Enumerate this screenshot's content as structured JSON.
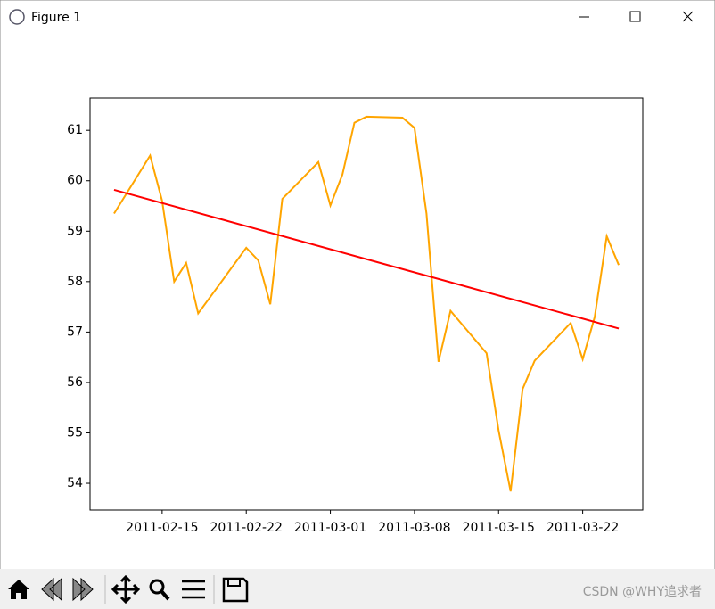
{
  "window": {
    "title": "Figure 1"
  },
  "watermark": "CSDN @WHY追求者",
  "chart_data": {
    "type": "line",
    "xlim": [
      "2011-02-09",
      "2011-03-27"
    ],
    "xticks": [
      "2011-02-15",
      "2011-02-22",
      "2011-03-01",
      "2011-03-08",
      "2011-03-15",
      "2011-03-22"
    ],
    "ylim": [
      53.47,
      61.64
    ],
    "yticks": [
      54,
      55,
      56,
      57,
      58,
      59,
      60,
      61
    ],
    "series": [
      {
        "color": "#ffa500",
        "x": [
          "2011-02-11",
          "2011-02-14",
          "2011-02-15",
          "2011-02-16",
          "2011-02-17",
          "2011-02-18",
          "2011-02-22",
          "2011-02-23",
          "2011-02-24",
          "2011-02-25",
          "2011-02-28",
          "2011-03-01",
          "2011-03-02",
          "2011-03-03",
          "2011-03-04",
          "2011-03-07",
          "2011-03-08",
          "2011-03-09",
          "2011-03-10",
          "2011-03-11",
          "2011-03-14",
          "2011-03-15",
          "2011-03-16",
          "2011-03-17",
          "2011-03-18",
          "2011-03-21",
          "2011-03-22",
          "2011-03-23",
          "2011-03-24",
          "2011-03-25"
        ],
        "values": [
          59.35,
          60.5,
          59.6,
          58.0,
          58.37,
          57.37,
          58.67,
          58.42,
          57.55,
          59.64,
          60.37,
          59.51,
          60.12,
          61.15,
          61.27,
          61.25,
          61.05,
          59.35,
          56.41,
          57.42,
          56.58,
          55.05,
          53.84,
          55.87,
          56.43,
          57.18,
          56.46,
          57.3,
          58.9,
          58.33
        ]
      },
      {
        "color": "#ff0000",
        "x": [
          "2011-02-11",
          "2011-03-25"
        ],
        "values": [
          59.82,
          57.07
        ]
      }
    ]
  }
}
